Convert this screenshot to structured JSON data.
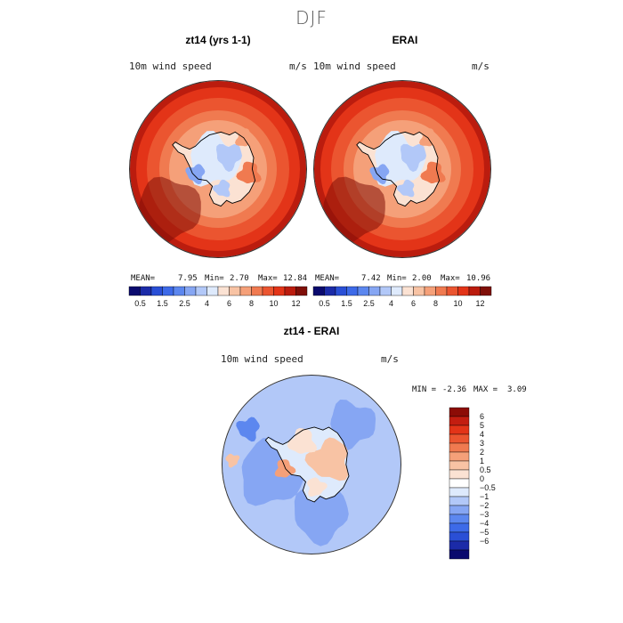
{
  "figure": {
    "supertitle": "DJF"
  },
  "panels": {
    "model": {
      "title": "zt14 (yrs 1-1)",
      "variable": "10m wind speed",
      "units": "m/s",
      "stats": {
        "mean_label": "MEAN=",
        "mean": "7.95",
        "min_label": "Min=",
        "min": "2.70",
        "max_label": "Max=",
        "max": "12.84"
      }
    },
    "obs": {
      "title": "ERAI",
      "variable": "10m wind speed",
      "units": "m/s",
      "stats": {
        "mean_label": "MEAN=",
        "mean": "7.42",
        "min_label": "Min=",
        "min": "2.00",
        "max_label": "Max=",
        "max": "10.96"
      }
    },
    "diff": {
      "title": "zt14 - ERAI",
      "variable": "10m wind speed",
      "units": "m/s",
      "stats": {
        "min_label": "MIN =",
        "min": "-2.36",
        "max_label": "MAX =",
        "max": "3.09"
      }
    }
  },
  "chart_data": [
    {
      "type": "heatmap",
      "title": "zt14 (yrs 1-1)",
      "variable": "10m wind speed",
      "units": "m/s",
      "projection": "south-polar",
      "stats": {
        "mean": 7.95,
        "min": 2.7,
        "max": 12.84
      },
      "colorbar": {
        "orientation": "horizontal",
        "tick_labels": [
          "0.5",
          "1.5",
          "2.5",
          "4",
          "6",
          "8",
          "10",
          "12"
        ],
        "levels": [
          0.5,
          1,
          1.5,
          2,
          2.5,
          3,
          4,
          5,
          6,
          7,
          8,
          9,
          10,
          11,
          12
        ],
        "colors": [
          "#0a0a6e",
          "#1b2ba8",
          "#2a4fd6",
          "#3d6ae8",
          "#5c87ef",
          "#86a6f3",
          "#b2c8f8",
          "#deeafc",
          "#fbe2d3",
          "#f8c3a4",
          "#f5a079",
          "#f07a50",
          "#eb5530",
          "#e33418",
          "#bb1c0e",
          "#7f0f08"
        ]
      }
    },
    {
      "type": "heatmap",
      "title": "ERAI",
      "variable": "10m wind speed",
      "units": "m/s",
      "projection": "south-polar",
      "stats": {
        "mean": 7.42,
        "min": 2.0,
        "max": 10.96
      },
      "colorbar": {
        "orientation": "horizontal",
        "tick_labels": [
          "0.5",
          "1.5",
          "2.5",
          "4",
          "6",
          "8",
          "10",
          "12"
        ],
        "levels": [
          0.5,
          1,
          1.5,
          2,
          2.5,
          3,
          4,
          5,
          6,
          7,
          8,
          9,
          10,
          11,
          12
        ],
        "colors": [
          "#0a0a6e",
          "#1b2ba8",
          "#2a4fd6",
          "#3d6ae8",
          "#5c87ef",
          "#86a6f3",
          "#b2c8f8",
          "#deeafc",
          "#fbe2d3",
          "#f8c3a4",
          "#f5a079",
          "#f07a50",
          "#eb5530",
          "#e33418",
          "#bb1c0e",
          "#7f0f08"
        ]
      }
    },
    {
      "type": "heatmap",
      "title": "zt14 - ERAI",
      "variable": "10m wind speed",
      "units": "m/s",
      "projection": "south-polar",
      "stats": {
        "min": -2.36,
        "max": 3.09
      },
      "colorbar": {
        "orientation": "vertical",
        "tick_labels": [
          "6",
          "5",
          "4",
          "3",
          "2",
          "1",
          "0.5",
          "0",
          "−0.5",
          "−1",
          "−2",
          "−3",
          "−4",
          "−5",
          "−6"
        ],
        "levels": [
          6,
          5,
          4,
          3,
          2,
          1,
          0.5,
          0,
          -0.5,
          -1,
          -2,
          -3,
          -4,
          -5,
          -6
        ],
        "colors": [
          "#8c0c06",
          "#c31d10",
          "#e33418",
          "#eb5530",
          "#f07a50",
          "#f5a079",
          "#f8c3a4",
          "#fbe2d3",
          "#ffffff",
          "#deeafc",
          "#b2c8f8",
          "#86a6f3",
          "#5c87ef",
          "#3d6ae8",
          "#2a4fd6",
          "#1b2ba8",
          "#0a0a6e"
        ]
      }
    }
  ]
}
